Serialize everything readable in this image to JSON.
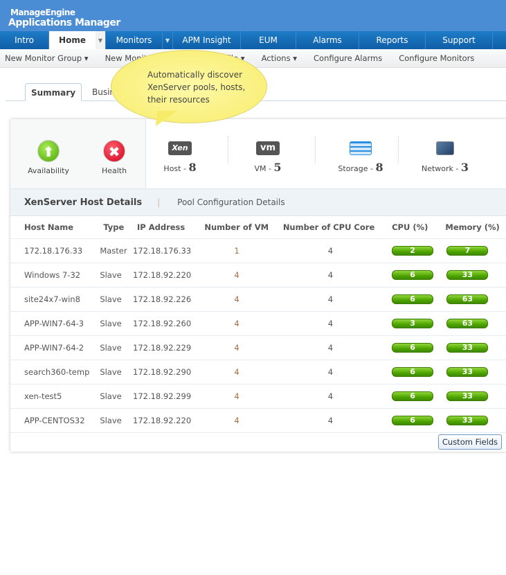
{
  "brand": {
    "line1": "ManageEngine",
    "line2": "Applications Manager"
  },
  "nav": [
    "Intro",
    "Home",
    "Monitors",
    "APM Insight",
    "EUM",
    "Alarms",
    "Reports",
    "Support"
  ],
  "subnav": [
    "New Monitor Group ▾",
    "New Monitor",
    "Threshold Profile ▾",
    "Actions ▾",
    "Configure Alarms",
    "Configure Monitors"
  ],
  "tabs": [
    "Summary",
    "Business"
  ],
  "callout": "Automatically discover XenServer pools, hosts, their resources",
  "status": {
    "availability": "Availability",
    "health": "Health"
  },
  "resources": [
    {
      "icon": "xen-icon",
      "glyph": "Xen",
      "label": "Host",
      "count": "8"
    },
    {
      "icon": "vm-icon",
      "glyph": "vm",
      "label": "VM",
      "count": "5"
    },
    {
      "icon": "storage-icon",
      "glyph": "",
      "label": "Storage",
      "count": "8"
    },
    {
      "icon": "network-icon",
      "glyph": "",
      "label": "Network",
      "count": "3"
    }
  ],
  "section": {
    "active": "XenServer Host Details",
    "other": "Pool Configuration Details"
  },
  "columns": [
    "Host Name",
    "Type",
    "IP Address",
    "Number of VM",
    "Number of CPU Core",
    "CPU (%)",
    "Memory (%)"
  ],
  "rows": [
    [
      "172.18.176.33",
      "Master",
      "172.18.176.33",
      "1",
      "4",
      "2",
      "7"
    ],
    [
      "Windows 7-32",
      "Slave",
      "172.18.92.220",
      "4",
      "4",
      "6",
      "33"
    ],
    [
      "site24x7-win8",
      "Slave",
      "172.18.92.226",
      "4",
      "4",
      "6",
      "63"
    ],
    [
      "APP-WIN7-64-3",
      "Slave",
      "172.18.92.260",
      "4",
      "4",
      "3",
      "63"
    ],
    [
      "APP-WIN7-64-2",
      "Slave",
      "172.18.92.229",
      "4",
      "4",
      "6",
      "33"
    ],
    [
      "search360-temp",
      "Slave",
      "172.18.92.290",
      "4",
      "4",
      "6",
      "33"
    ],
    [
      "xen-test5",
      "Slave",
      "172.18.92.299",
      "4",
      "4",
      "6",
      "33"
    ],
    [
      "APP-CENTOS32",
      "Slave",
      "172.18.92.220",
      "4",
      "4",
      "6",
      "33"
    ]
  ],
  "custom_fields": "Custom Fields",
  "colors": {
    "header": "#4a8dd5",
    "nav": "#1f7cc6",
    "bar": "#4fa400",
    "callout": "#f6ec6a"
  }
}
